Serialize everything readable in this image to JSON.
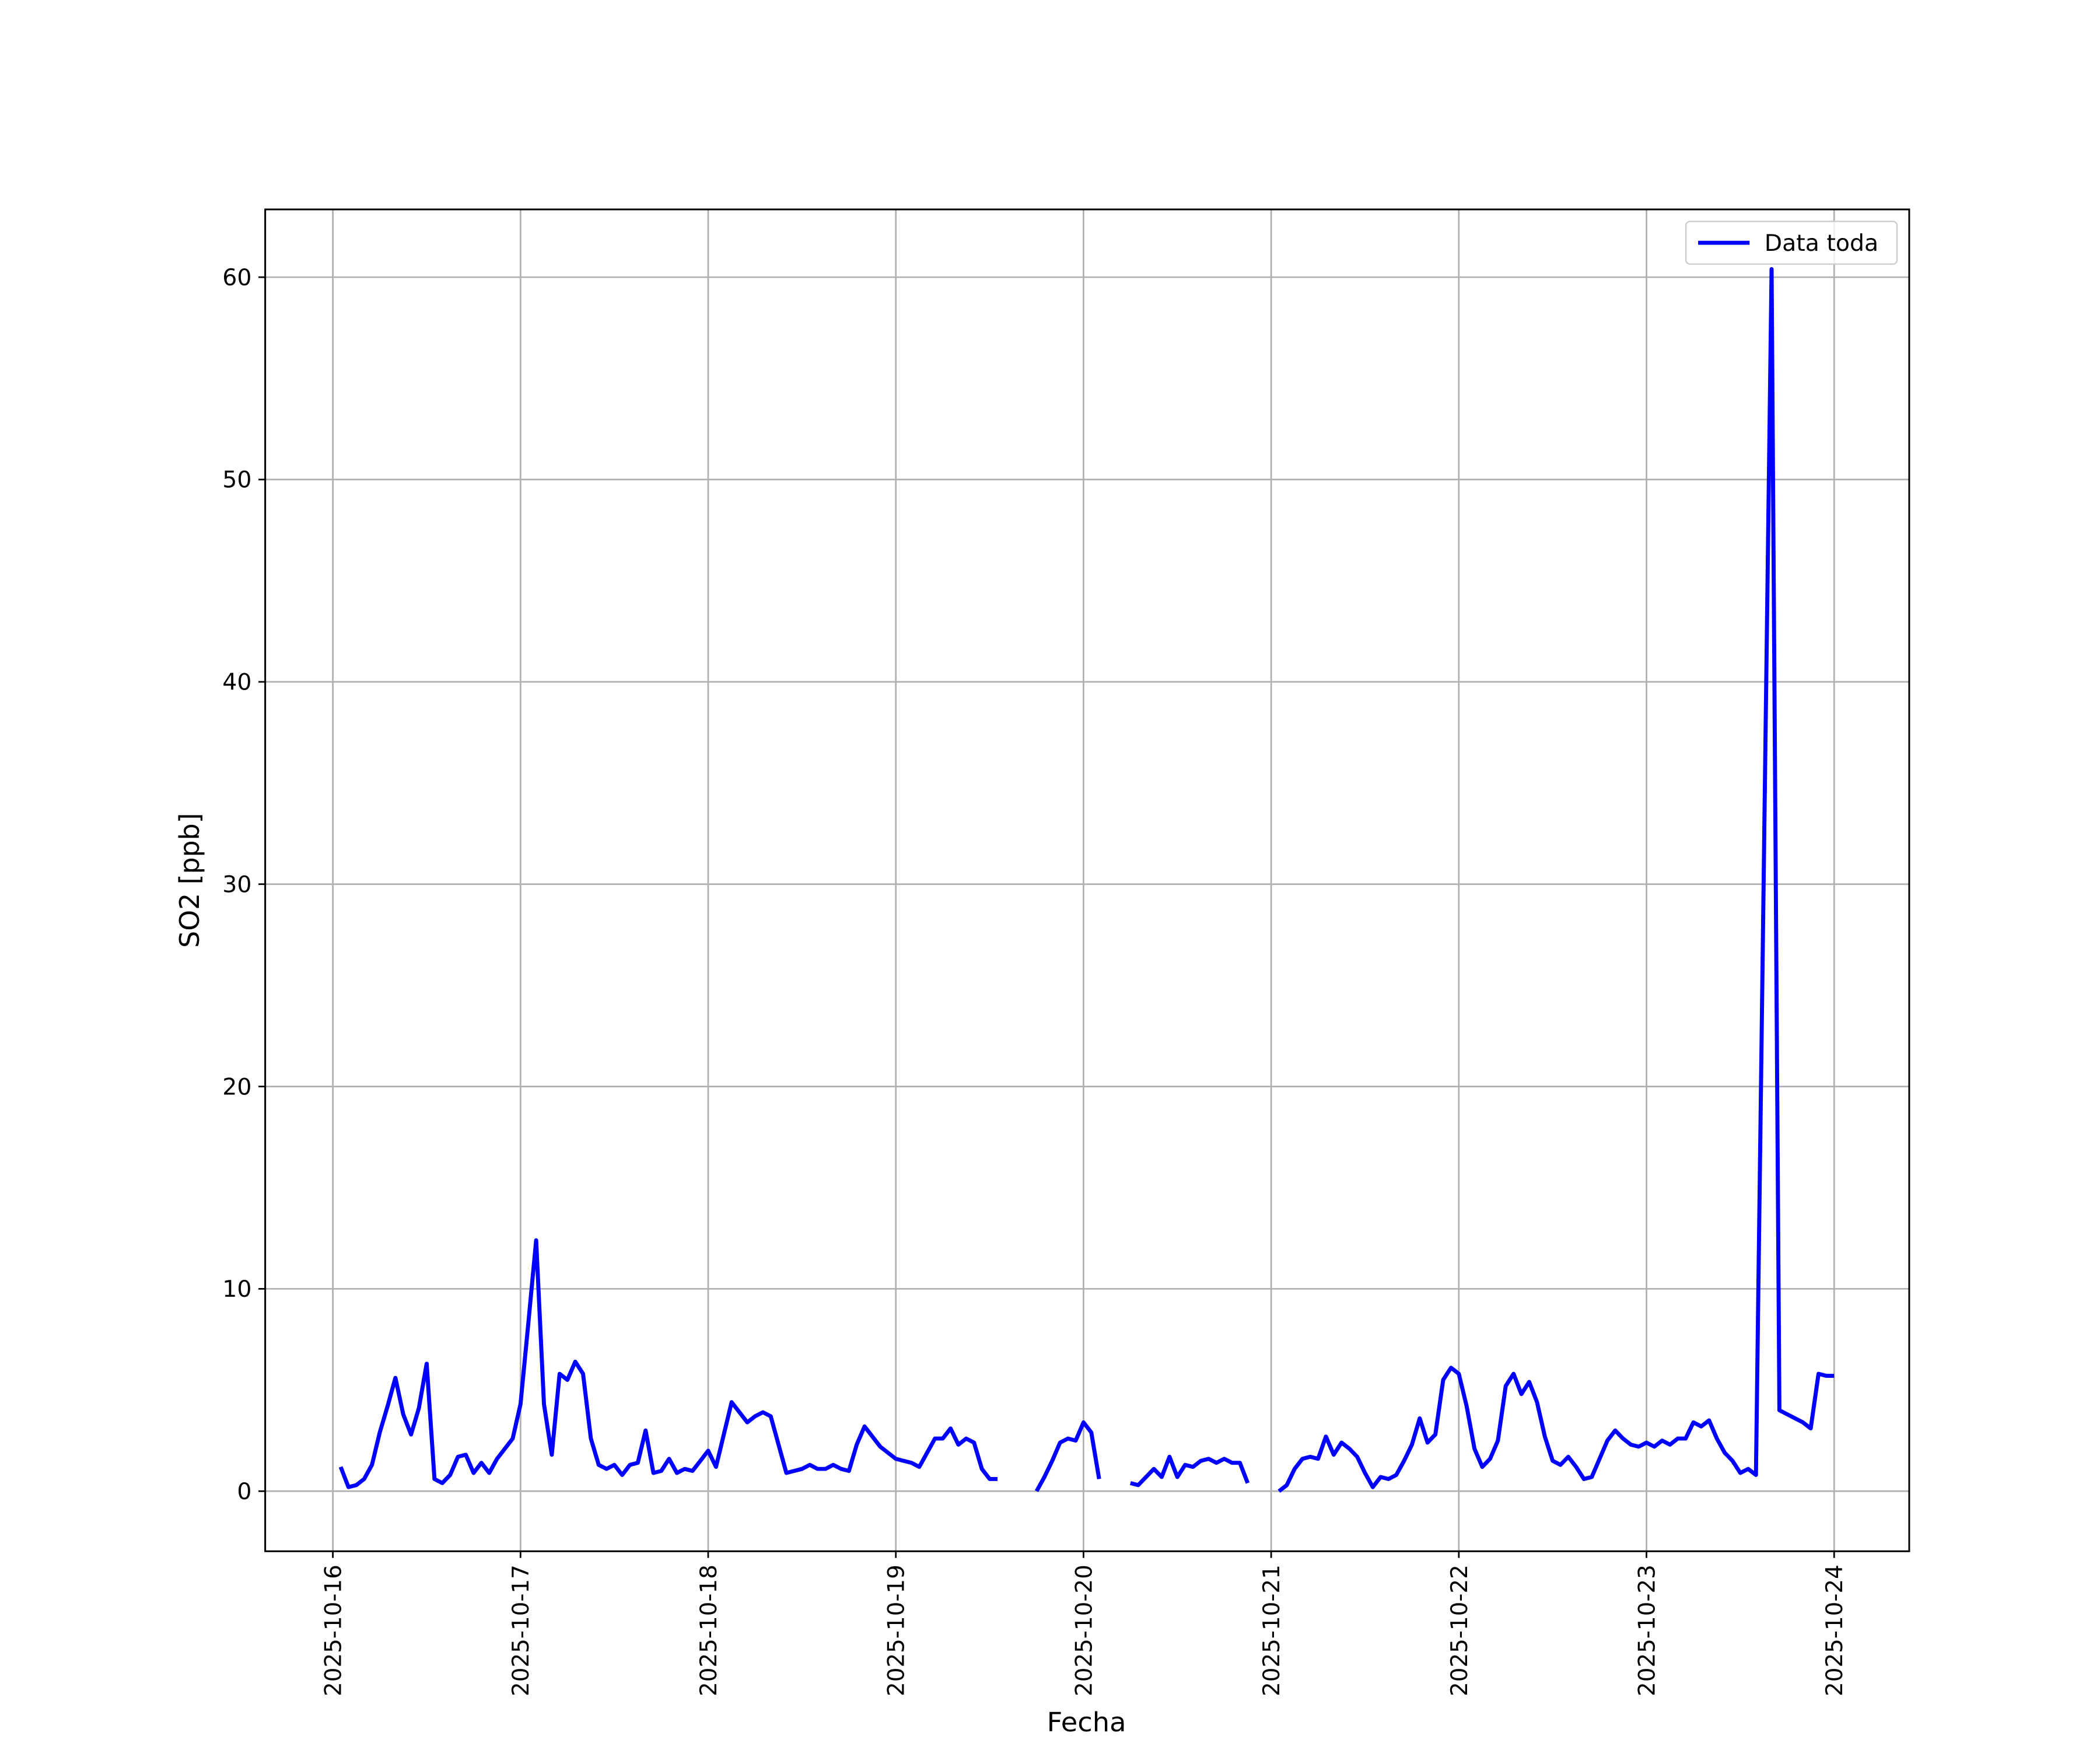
{
  "chart_data": {
    "type": "line",
    "xlabel": "Fecha",
    "ylabel": "SO2 [ppb]",
    "x": [
      1,
      2,
      3,
      4,
      5,
      6,
      7,
      8,
      9,
      10,
      11,
      12,
      13,
      14,
      15,
      16,
      17,
      18,
      19,
      20,
      21,
      22,
      23,
      24,
      25,
      26,
      27,
      28,
      29,
      30,
      31,
      32,
      33,
      34,
      35,
      36,
      37,
      38,
      39,
      40,
      41,
      42,
      43,
      44,
      45,
      46,
      47,
      48,
      49,
      50,
      51,
      52,
      53,
      54,
      55,
      56,
      57,
      58,
      59,
      60,
      61,
      62,
      63,
      64,
      65,
      66,
      67,
      68,
      69,
      70,
      71,
      72,
      73,
      74,
      75,
      76,
      77,
      78,
      79,
      80,
      81,
      82,
      83,
      84,
      85,
      86,
      87,
      88,
      89,
      90,
      91,
      92,
      93,
      94,
      95,
      96,
      97,
      98,
      99,
      100,
      101,
      102,
      103,
      104,
      105,
      106,
      107,
      108,
      109,
      110,
      111,
      112,
      113,
      114,
      115,
      116,
      117,
      118,
      119,
      120,
      121,
      122,
      123,
      124,
      125,
      126,
      127,
      128,
      129,
      130,
      131,
      132,
      133,
      134,
      135,
      136,
      137,
      138,
      139,
      140,
      141,
      142,
      143,
      144,
      145,
      146,
      147,
      148,
      149,
      150,
      151,
      152,
      153,
      154,
      155,
      156,
      157,
      158,
      159,
      160,
      161,
      162,
      163,
      164,
      165,
      166,
      167,
      168,
      169,
      170,
      171,
      172,
      173,
      174,
      175,
      176,
      177,
      178,
      179,
      180,
      181,
      182,
      183,
      184,
      185,
      186,
      187,
      188,
      189,
      190,
      191,
      192
    ],
    "series": [
      {
        "name": "Data toda",
        "color": "#0000ff",
        "values": [
          1.2,
          0.2,
          0.3,
          0.6,
          1.3,
          2.9,
          4.2,
          5.6,
          3.8,
          2.8,
          4.1,
          6.3,
          0.6,
          0.4,
          0.8,
          1.7,
          1.8,
          0.9,
          1.4,
          0.9,
          1.6,
          2.1,
          2.6,
          4.3,
          8.3,
          12.4,
          4.3,
          1.8,
          5.8,
          5.5,
          6.4,
          5.8,
          2.6,
          1.3,
          1.1,
          1.3,
          0.8,
          1.3,
          1.4,
          3.0,
          0.9,
          1.0,
          1.6,
          0.9,
          1.1,
          1.0,
          1.5,
          2.0,
          1.2,
          2.8,
          4.4,
          3.9,
          3.4,
          3.7,
          3.9,
          3.7,
          2.3,
          0.9,
          1.0,
          1.1,
          1.3,
          1.1,
          1.1,
          1.3,
          1.1,
          1.0,
          2.3,
          3.2,
          2.7,
          2.2,
          1.9,
          1.6,
          1.5,
          1.4,
          1.2,
          1.9,
          2.6,
          2.6,
          3.1,
          2.3,
          2.6,
          2.4,
          1.1,
          0.6,
          0.6,
          null,
          null,
          null,
          null,
          0.0,
          0.7,
          1.5,
          2.4,
          2.6,
          2.5,
          3.4,
          2.9,
          0.6,
          null,
          null,
          null,
          0.4,
          0.3,
          0.7,
          1.1,
          0.7,
          1.7,
          0.7,
          1.3,
          1.2,
          1.5,
          1.6,
          1.4,
          1.6,
          1.4,
          1.4,
          0.4,
          null,
          null,
          null,
          0.0,
          0.3,
          1.1,
          1.6,
          1.7,
          1.6,
          2.7,
          1.8,
          2.4,
          2.1,
          1.7,
          0.9,
          0.2,
          0.7,
          0.6,
          0.8,
          1.5,
          2.3,
          3.6,
          2.4,
          2.8,
          5.5,
          6.1,
          5.8,
          4.2,
          2.1,
          1.2,
          1.6,
          2.5,
          5.2,
          5.8,
          4.8,
          5.4,
          4.4,
          2.7,
          1.5,
          1.3,
          1.7,
          1.2,
          0.6,
          0.7,
          1.6,
          2.5,
          3.0,
          2.6,
          2.3,
          2.2,
          2.4,
          2.2,
          2.5,
          2.3,
          2.6,
          2.6,
          3.4,
          3.2,
          3.5,
          2.6,
          1.9,
          1.5,
          0.9,
          1.1,
          0.8,
          30.6,
          60.4,
          4.0,
          3.8,
          3.6,
          3.4,
          3.1,
          5.8,
          5.7,
          5.7
        ]
      }
    ],
    "xlim": [
      -8.65,
      201.6
    ],
    "xticks": [
      {
        "value": 0,
        "label": "2025-10-16"
      },
      {
        "value": 24,
        "label": "2025-10-17"
      },
      {
        "value": 48,
        "label": "2025-10-18"
      },
      {
        "value": 72,
        "label": "2025-10-19"
      },
      {
        "value": 96,
        "label": "2025-10-20"
      },
      {
        "value": 120,
        "label": "2025-10-21"
      },
      {
        "value": 144,
        "label": "2025-10-22"
      },
      {
        "value": 168,
        "label": "2025-10-23"
      },
      {
        "value": 192,
        "label": "2025-10-24"
      }
    ],
    "ylim": [
      -2.97,
      63.35
    ],
    "yticks": [
      0,
      10,
      20,
      30,
      40,
      50,
      60
    ],
    "grid": true,
    "legend": "upper right"
  }
}
